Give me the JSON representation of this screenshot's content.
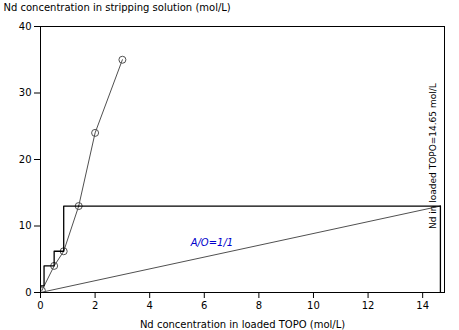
{
  "chart_data": {
    "type": "line",
    "xlabel": "Nd concentration in loaded TOPO (mol/L)",
    "ylabel": "Nd concentration in stripping solution (mol/L)",
    "xlim": [
      0,
      14.8
    ],
    "ylim": [
      0,
      40
    ],
    "xticks": [
      0,
      2,
      4,
      6,
      8,
      10,
      12,
      14
    ],
    "yticks": [
      0,
      10,
      20,
      30,
      40
    ],
    "series": [
      {
        "x": [
          0.05,
          0.5,
          0.85,
          1.4,
          2.0,
          3.0
        ],
        "values": [
          0.3,
          4.0,
          6.2,
          13.0,
          24.0,
          35.0
        ],
        "color": "#505050",
        "marker": "circle"
      },
      {
        "x": [
          0,
          14.65
        ],
        "values": [
          0,
          13.0
        ],
        "color": "#505050"
      },
      {
        "x": [
          1.4,
          14.65
        ],
        "values": [
          13.0,
          13.0
        ],
        "color": "#000000"
      },
      {
        "x": [
          14.65,
          14.65
        ],
        "values": [
          0,
          13.0
        ],
        "color": "#000000"
      },
      {
        "x": [
          0.0,
          0.0,
          0.13,
          0.13,
          0.5,
          0.5,
          0.85,
          0.85,
          1.4
        ],
        "values": [
          0.0,
          1.0,
          1.0,
          4.0,
          4.0,
          6.2,
          6.2,
          13.0,
          13.0
        ],
        "color": "#000000"
      }
    ],
    "annotations": [
      {
        "text": "A/O=1/1",
        "x": 5.5,
        "y": 7.5,
        "color": "#0000cc"
      },
      {
        "text": "Nd in loaded TOPO=14.65 mol/L",
        "x": 14.4,
        "y": 20.5,
        "color": "#000000"
      }
    ]
  }
}
